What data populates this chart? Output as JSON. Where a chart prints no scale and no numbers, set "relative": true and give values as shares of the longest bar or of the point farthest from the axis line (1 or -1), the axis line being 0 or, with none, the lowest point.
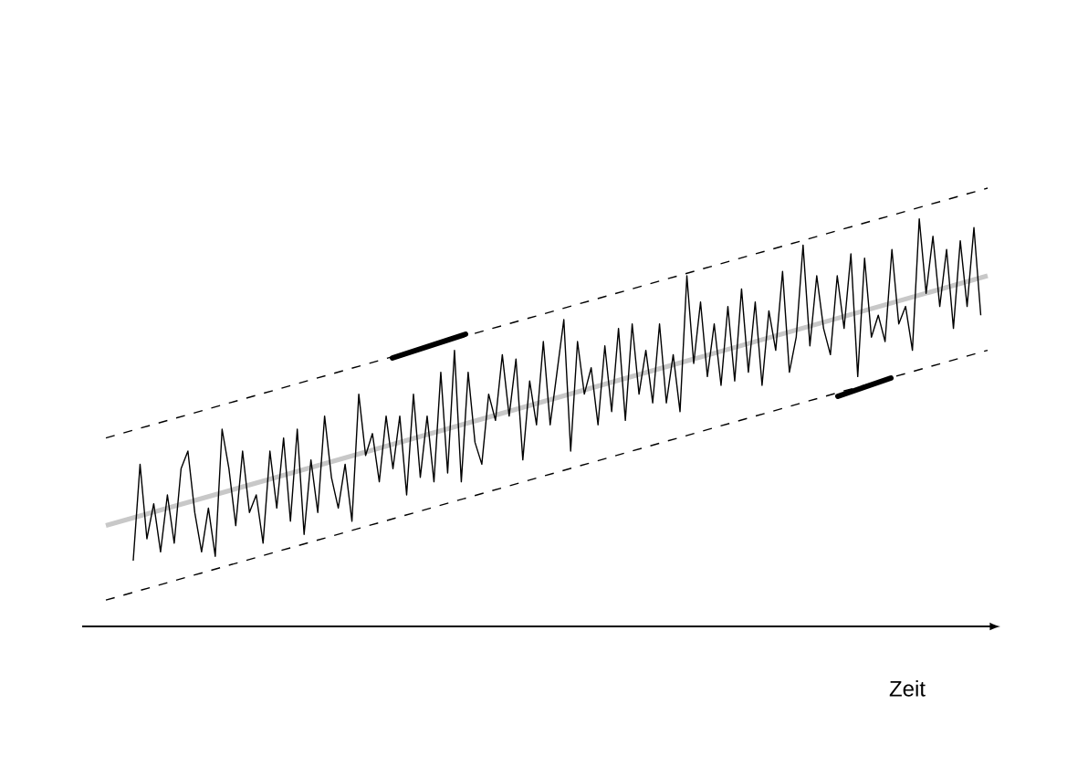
{
  "chart_data": {
    "type": "line",
    "relative": true,
    "xlabel": "Zeit",
    "marker": "none",
    "categories": [
      null,
      null,
      null,
      null,
      null,
      null,
      null,
      null,
      null,
      null,
      null,
      null,
      null,
      null,
      null,
      null,
      null,
      null,
      null,
      null,
      null,
      null,
      null,
      null,
      null,
      null,
      null,
      null,
      null,
      null,
      null,
      null,
      null,
      null,
      null,
      null,
      null,
      null,
      null,
      null,
      null,
      null,
      null,
      null,
      null,
      null,
      null,
      null,
      null,
      null,
      null,
      null,
      null,
      null,
      null,
      null,
      null,
      null,
      null,
      null,
      null,
      null,
      null,
      null,
      null,
      null,
      null,
      null,
      null,
      null,
      null,
      null,
      null,
      null,
      null,
      null,
      null,
      null,
      null,
      null,
      null,
      null,
      null,
      null,
      null,
      null,
      null,
      null,
      null,
      null,
      null,
      null,
      null,
      null,
      null,
      null,
      null,
      null,
      null,
      null,
      null,
      null,
      null,
      null,
      null,
      null,
      null,
      null,
      null,
      null,
      null,
      null,
      null,
      null,
      null,
      null,
      null,
      null,
      null,
      null,
      null,
      null,
      null,
      null,
      null,
      null,
      null,
      null,
      null,
      null
    ],
    "series": [
      {
        "color": "#c8c8c8",
        "line_style": "solid",
        "values": [
          0.23,
          null,
          null,
          null,
          null,
          null,
          null,
          null,
          null,
          null,
          null,
          null,
          null,
          null,
          null,
          null,
          null,
          null,
          null,
          null,
          null,
          null,
          null,
          null,
          null,
          null,
          null,
          null,
          null,
          null,
          null,
          null,
          null,
          null,
          null,
          null,
          null,
          null,
          null,
          null,
          null,
          null,
          null,
          null,
          null,
          null,
          null,
          null,
          null,
          null,
          null,
          null,
          null,
          null,
          null,
          null,
          null,
          null,
          null,
          null,
          null,
          null,
          null,
          null,
          null,
          null,
          null,
          null,
          null,
          null,
          null,
          null,
          null,
          null,
          null,
          null,
          null,
          null,
          null,
          null,
          null,
          null,
          null,
          null,
          null,
          null,
          null,
          null,
          null,
          null,
          null,
          null,
          null,
          null,
          null,
          null,
          null,
          null,
          null,
          null,
          null,
          null,
          null,
          null,
          null,
          null,
          null,
          null,
          null,
          null,
          null,
          null,
          null,
          null,
          null,
          null,
          null,
          null,
          null,
          null,
          null,
          null,
          null,
          null,
          null,
          null,
          null,
          null,
          null,
          0.8
        ]
      },
      {
        "color": "#000000",
        "line_style": "dashed",
        "values": [
          0.43,
          null,
          null,
          null,
          null,
          null,
          null,
          null,
          null,
          null,
          null,
          null,
          null,
          null,
          null,
          null,
          null,
          null,
          null,
          null,
          null,
          null,
          null,
          null,
          null,
          null,
          null,
          null,
          null,
          null,
          null,
          null,
          null,
          null,
          null,
          null,
          null,
          null,
          null,
          null,
          null,
          null,
          null,
          null,
          null,
          null,
          null,
          null,
          null,
          null,
          null,
          null,
          null,
          null,
          null,
          null,
          null,
          null,
          null,
          null,
          null,
          null,
          null,
          null,
          null,
          null,
          null,
          null,
          null,
          null,
          null,
          null,
          null,
          null,
          null,
          null,
          null,
          null,
          null,
          null,
          null,
          null,
          null,
          null,
          null,
          null,
          null,
          null,
          null,
          null,
          null,
          null,
          null,
          null,
          null,
          null,
          null,
          null,
          null,
          null,
          null,
          null,
          null,
          null,
          null,
          null,
          null,
          null,
          null,
          null,
          null,
          null,
          null,
          null,
          null,
          null,
          null,
          null,
          null,
          null,
          null,
          null,
          null,
          null,
          null,
          null,
          null,
          null,
          null,
          1.0
        ]
      },
      {
        "color": "#000000",
        "line_style": "dashed",
        "values": [
          0.06,
          null,
          null,
          null,
          null,
          null,
          null,
          null,
          null,
          null,
          null,
          null,
          null,
          null,
          null,
          null,
          null,
          null,
          null,
          null,
          null,
          null,
          null,
          null,
          null,
          null,
          null,
          null,
          null,
          null,
          null,
          null,
          null,
          null,
          null,
          null,
          null,
          null,
          null,
          null,
          null,
          null,
          null,
          null,
          null,
          null,
          null,
          null,
          null,
          null,
          null,
          null,
          null,
          null,
          null,
          null,
          null,
          null,
          null,
          null,
          null,
          null,
          null,
          null,
          null,
          null,
          null,
          null,
          null,
          null,
          null,
          null,
          null,
          null,
          null,
          null,
          null,
          null,
          null,
          null,
          null,
          null,
          null,
          null,
          null,
          null,
          null,
          null,
          null,
          null,
          null,
          null,
          null,
          null,
          null,
          null,
          null,
          null,
          null,
          null,
          null,
          null,
          null,
          null,
          null,
          null,
          null,
          null,
          null,
          null,
          null,
          null,
          null,
          null,
          null,
          null,
          null,
          null,
          null,
          null,
          null,
          null,
          null,
          null,
          null,
          null,
          null,
          null,
          null,
          0.63
        ]
      },
      {
        "color": "#000000",
        "line_style": "solid",
        "values": [
          null,
          null,
          null,
          null,
          0.15,
          0.37,
          0.2,
          0.28,
          0.17,
          0.3,
          0.19,
          0.36,
          0.4,
          0.26,
          0.17,
          0.27,
          0.16,
          0.45,
          0.36,
          0.23,
          0.4,
          0.26,
          0.3,
          0.19,
          0.4,
          0.27,
          0.43,
          0.24,
          0.45,
          0.21,
          0.38,
          0.26,
          0.48,
          0.34,
          0.27,
          0.37,
          0.24,
          0.53,
          0.39,
          0.44,
          0.33,
          0.48,
          0.36,
          0.48,
          0.3,
          0.53,
          0.34,
          0.48,
          0.33,
          0.58,
          0.35,
          0.63,
          0.33,
          0.58,
          0.42,
          0.37,
          0.53,
          0.47,
          0.62,
          0.48,
          0.61,
          0.38,
          0.56,
          0.46,
          0.65,
          0.46,
          0.58,
          0.7,
          0.4,
          0.65,
          0.53,
          0.59,
          0.46,
          0.64,
          0.49,
          0.68,
          0.47,
          0.69,
          0.53,
          0.63,
          0.51,
          0.69,
          0.51,
          0.62,
          0.49,
          0.8,
          0.6,
          0.74,
          0.57,
          0.69,
          0.55,
          0.73,
          0.56,
          0.77,
          0.58,
          0.74,
          0.55,
          0.72,
          0.63,
          0.81,
          0.58,
          0.66,
          0.87,
          0.64,
          0.8,
          0.68,
          0.62,
          0.8,
          0.68,
          0.85,
          0.57,
          0.84,
          0.66,
          0.71,
          0.65,
          0.86,
          0.69,
          0.73,
          0.63,
          0.93,
          0.76,
          0.89,
          0.73,
          0.86,
          0.68,
          0.88,
          0.73,
          0.91,
          0.71,
          null
        ]
      }
    ]
  }
}
